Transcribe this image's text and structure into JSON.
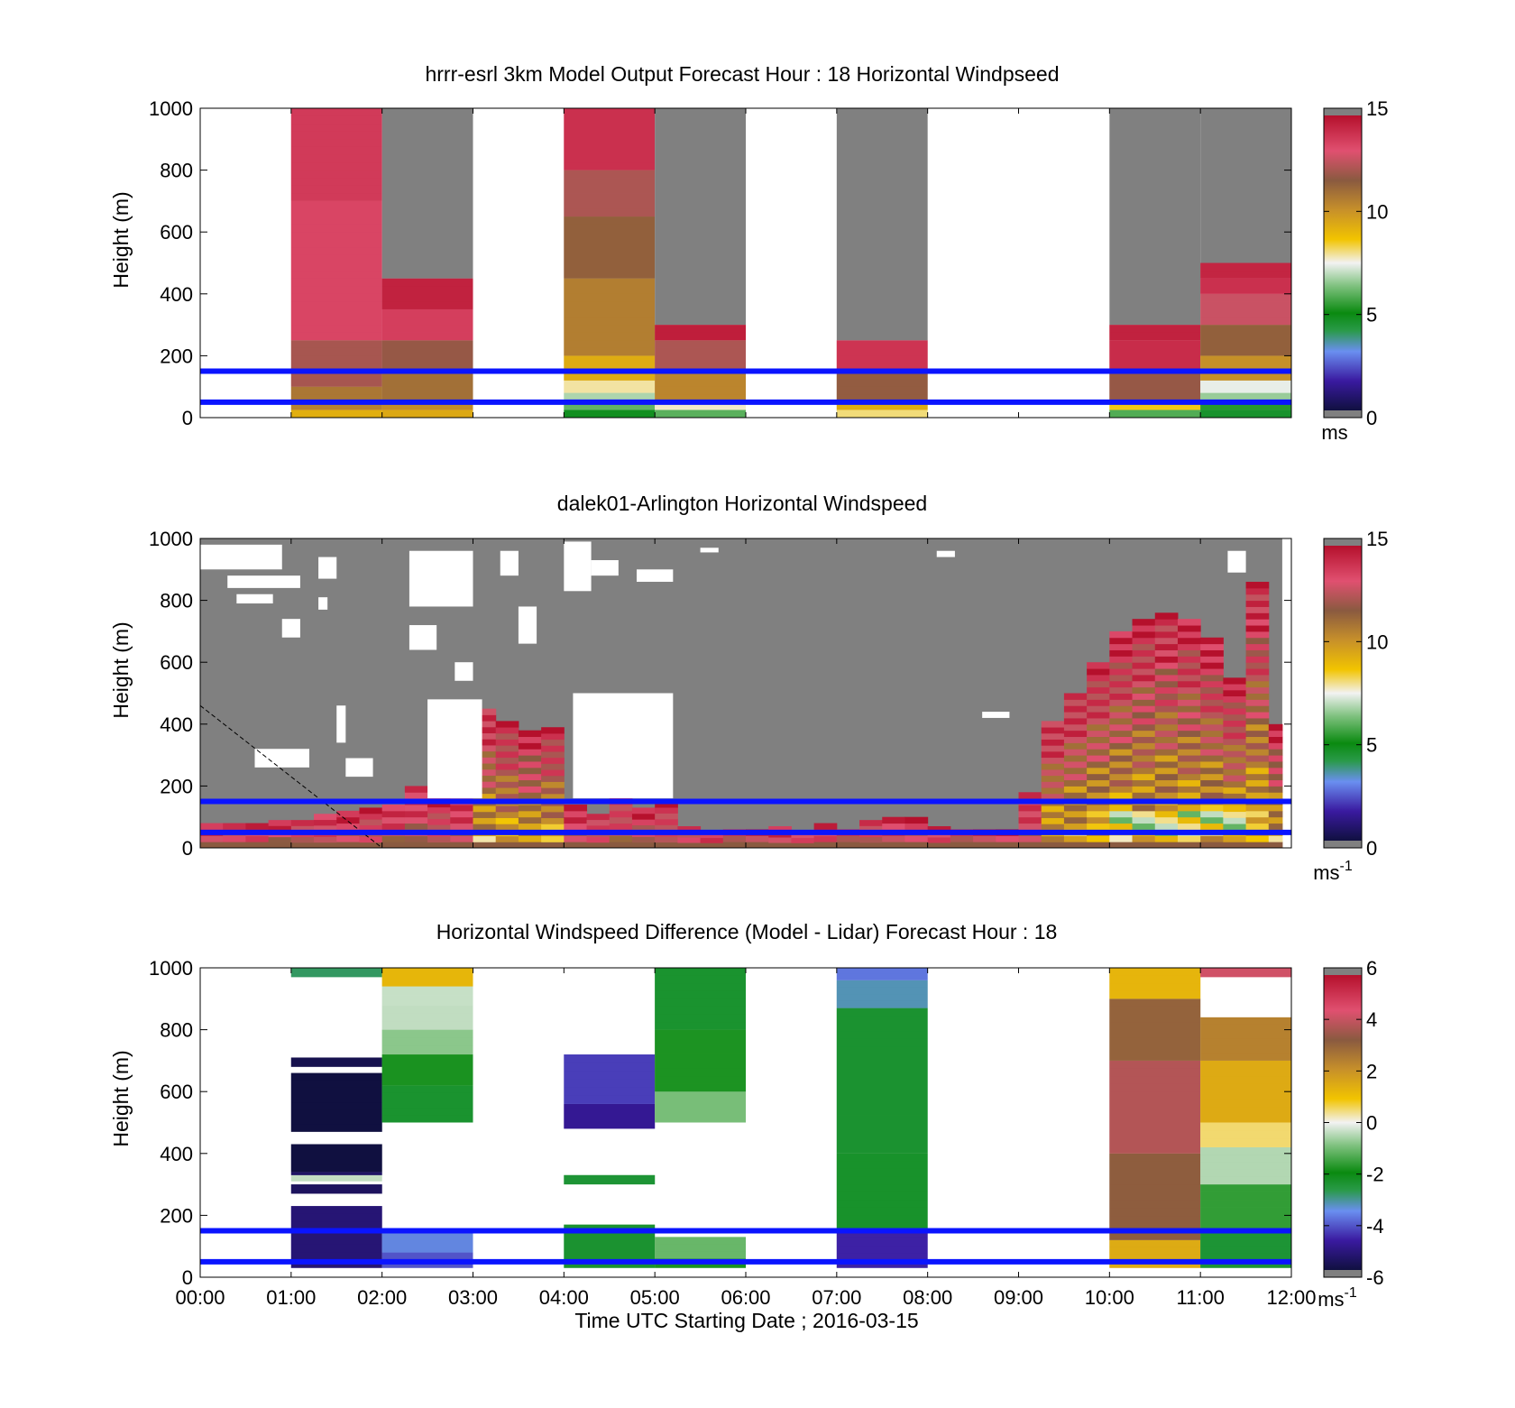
{
  "figure": {
    "xlabel": "Time UTC  Starting Date ; 2016-03-15"
  },
  "panels": [
    {
      "id": "model",
      "title": "hrrr-esrl 3km Model Output   Forecast Hour : 18 Horizontal Windpseed",
      "ylabel": "Height (m)",
      "ylim": [
        0,
        1000
      ],
      "yticks": [
        "0",
        "200",
        "400",
        "600",
        "800",
        "1000"
      ],
      "colorbar": {
        "ticks": [
          "0",
          "5",
          "10",
          "15"
        ],
        "unit": "ms",
        "unit_sup": "",
        "range": [
          0,
          15
        ],
        "cmap": "speed"
      },
      "ref_lines_m": [
        50,
        150
      ],
      "columns": [
        {
          "t0": 1,
          "t1": 2,
          "fill": [
            [
              0,
              25,
              9.5
            ],
            [
              25,
              50,
              10.5
            ],
            [
              50,
              100,
              11
            ],
            [
              100,
              250,
              12
            ],
            [
              250,
              700,
              13.5
            ],
            [
              700,
              1000,
              14
            ]
          ]
        },
        {
          "t0": 2,
          "t1": 3,
          "fill": [
            [
              0,
              25,
              9.5
            ],
            [
              25,
              50,
              10.5
            ],
            [
              50,
              150,
              11
            ],
            [
              150,
              250,
              12
            ],
            [
              250,
              350,
              13.5
            ],
            [
              350,
              450,
              14.5
            ],
            [
              450,
              1000,
              "nan"
            ]
          ]
        },
        {
          "t0": 4,
          "t1": 5,
          "fill": [
            [
              0,
              25,
              4.5
            ],
            [
              25,
              50,
              6
            ],
            [
              50,
              80,
              7
            ],
            [
              80,
              120,
              7.8
            ],
            [
              120,
              200,
              9.5
            ],
            [
              200,
              450,
              10.5
            ],
            [
              450,
              650,
              11.5
            ],
            [
              650,
              800,
              12.5
            ],
            [
              800,
              1000,
              14
            ]
          ]
        },
        {
          "t0": 5,
          "t1": 6,
          "fill": [
            [
              0,
              25,
              6
            ],
            [
              25,
              50,
              7.5
            ],
            [
              50,
              150,
              10.5
            ],
            [
              150,
              250,
              12.5
            ],
            [
              250,
              300,
              14.5
            ],
            [
              300,
              1000,
              "nan"
            ]
          ]
        },
        {
          "t0": 7,
          "t1": 8,
          "fill": [
            [
              0,
              25,
              8
            ],
            [
              25,
              50,
              9.5
            ],
            [
              50,
              150,
              11.5
            ],
            [
              150,
              250,
              14
            ],
            [
              250,
              1000,
              "nan"
            ]
          ]
        },
        {
          "t0": 10,
          "t1": 11,
          "fill": [
            [
              0,
              25,
              6
            ],
            [
              25,
              50,
              8.5
            ],
            [
              50,
              150,
              12
            ],
            [
              150,
              250,
              14
            ],
            [
              250,
              300,
              14.5
            ],
            [
              300,
              1000,
              "nan"
            ]
          ]
        },
        {
          "t0": 11,
          "t1": 12,
          "fill": [
            [
              0,
              25,
              4.5
            ],
            [
              25,
              50,
              5.5
            ],
            [
              50,
              80,
              6.5
            ],
            [
              80,
              120,
              7.5
            ],
            [
              120,
              200,
              10
            ],
            [
              200,
              300,
              11.5
            ],
            [
              300,
              400,
              13
            ],
            [
              400,
              450,
              14
            ],
            [
              450,
              500,
              14.5
            ],
            [
              500,
              1000,
              "nan"
            ]
          ]
        }
      ]
    },
    {
      "id": "lidar",
      "title": "dalek01-Arlington  Horizontal Windspeed",
      "ylabel": "Height (m)",
      "ylim": [
        0,
        1000
      ],
      "yticks": [
        "0",
        "200",
        "400",
        "600",
        "800",
        "1000"
      ],
      "colorbar": {
        "ticks": [
          "0",
          "5",
          "10",
          "15"
        ],
        "unit": "ms",
        "unit_sup": "-1",
        "range": [
          0,
          15
        ],
        "cmap": "speed"
      },
      "ref_lines_m": [
        50,
        150
      ],
      "time_range": [
        0,
        11.9
      ],
      "data_top_m": [
        [
          0.0,
          80
        ],
        [
          0.25,
          80
        ],
        [
          0.5,
          80
        ],
        [
          0.75,
          90
        ],
        [
          1.0,
          90
        ],
        [
          1.25,
          110
        ],
        [
          1.5,
          120
        ],
        [
          1.75,
          130
        ],
        [
          2.0,
          140
        ],
        [
          2.25,
          200
        ],
        [
          2.5,
          170
        ],
        [
          2.75,
          160
        ],
        [
          3.0,
          450
        ],
        [
          3.25,
          410
        ],
        [
          3.5,
          380
        ],
        [
          3.75,
          390
        ],
        [
          4.0,
          140
        ],
        [
          4.25,
          110
        ],
        [
          4.5,
          200
        ],
        [
          4.75,
          130
        ],
        [
          5.0,
          150
        ],
        [
          5.25,
          70
        ],
        [
          5.5,
          50
        ],
        [
          5.75,
          60
        ],
        [
          6.0,
          60
        ],
        [
          6.25,
          70
        ],
        [
          6.5,
          50
        ],
        [
          6.75,
          80
        ],
        [
          7.0,
          60
        ],
        [
          7.25,
          90
        ],
        [
          7.5,
          100
        ],
        [
          7.75,
          100
        ],
        [
          8.0,
          70
        ],
        [
          8.25,
          60
        ],
        [
          8.5,
          60
        ],
        [
          8.75,
          60
        ],
        [
          9.0,
          180
        ],
        [
          9.25,
          410
        ],
        [
          9.5,
          500
        ],
        [
          9.75,
          600
        ],
        [
          10.0,
          700
        ],
        [
          10.25,
          740
        ],
        [
          10.5,
          760
        ],
        [
          10.75,
          740
        ],
        [
          11.0,
          680
        ],
        [
          11.25,
          550
        ],
        [
          11.5,
          860
        ],
        [
          11.75,
          400
        ]
      ],
      "white_gaps": [
        [
          0.0,
          0.9,
          900,
          980
        ],
        [
          0.3,
          1.1,
          840,
          880
        ],
        [
          0.4,
          0.8,
          790,
          820
        ],
        [
          0.9,
          1.1,
          680,
          740
        ],
        [
          1.3,
          1.5,
          870,
          940
        ],
        [
          1.3,
          1.4,
          770,
          810
        ],
        [
          1.5,
          1.6,
          340,
          460
        ],
        [
          2.3,
          3.0,
          780,
          960
        ],
        [
          2.3,
          2.6,
          640,
          720
        ],
        [
          2.8,
          3.0,
          540,
          600
        ],
        [
          2.5,
          3.1,
          160,
          480
        ],
        [
          3.3,
          3.5,
          880,
          960
        ],
        [
          3.5,
          3.7,
          660,
          780
        ],
        [
          4.0,
          4.3,
          830,
          990
        ],
        [
          4.1,
          5.2,
          160,
          500
        ],
        [
          4.3,
          4.6,
          880,
          930
        ],
        [
          4.8,
          5.2,
          860,
          900
        ],
        [
          0.6,
          1.2,
          260,
          320
        ],
        [
          1.6,
          1.9,
          230,
          290
        ],
        [
          5.5,
          5.7,
          955,
          970
        ],
        [
          8.1,
          8.3,
          940,
          960
        ],
        [
          8.6,
          8.9,
          420,
          440
        ],
        [
          11.3,
          11.5,
          890,
          960
        ]
      ],
      "dashed_line": [
        [
          0.0,
          460
        ],
        [
          2.0,
          0
        ]
      ]
    },
    {
      "id": "diff",
      "title": "Horizontal Windspeed Difference (Model - Lidar) Forecast Hour : 18",
      "ylabel": "Height (m)",
      "ylim": [
        0,
        1000
      ],
      "yticks": [
        "0",
        "200",
        "400",
        "600",
        "800",
        "1000"
      ],
      "xticks": [
        "00:00",
        "01:00",
        "02:00",
        "03:00",
        "04:00",
        "05:00",
        "06:00",
        "07:00",
        "08:00",
        "09:00",
        "10:00",
        "11:00",
        "12:00"
      ],
      "colorbar": {
        "ticks": [
          "-6",
          "-4",
          "-2",
          "0",
          "2",
          "4",
          "6"
        ],
        "unit": "ms",
        "unit_sup": "-1",
        "range": [
          -6,
          6
        ],
        "cmap": "diff"
      },
      "ref_lines_m": [
        50,
        150
      ],
      "columns": [
        {
          "t0": 1,
          "t1": 2,
          "fill": [
            [
              30,
              230,
              -5.2
            ],
            [
              270,
              300,
              -5.7
            ],
            [
              310,
              330,
              -0.3
            ],
            [
              330,
              340,
              -5.7
            ],
            [
              340,
              430,
              -6.5
            ],
            [
              470,
              660,
              -6.5
            ],
            [
              680,
              710,
              -5.9
            ],
            [
              970,
              1000,
              -2.8
            ]
          ]
        },
        {
          "t0": 2,
          "t1": 3,
          "fill": [
            [
              30,
              80,
              -4.2
            ],
            [
              80,
              150,
              -3.5
            ],
            [
              500,
              620,
              -2.5
            ],
            [
              620,
              720,
              -1.8
            ],
            [
              720,
              800,
              -1.0
            ],
            [
              800,
              880,
              -0.4
            ],
            [
              880,
              940,
              -0.2
            ],
            [
              940,
              1000,
              1.2
            ]
          ]
        },
        {
          "t0": 4,
          "t1": 5,
          "fill": [
            [
              30,
              170,
              -2.6
            ],
            [
              300,
              330,
              -2.5
            ],
            [
              480,
              560,
              -4.8
            ],
            [
              560,
              720,
              -4.5
            ]
          ]
        },
        {
          "t0": 5,
          "t1": 6,
          "fill": [
            [
              30,
              60,
              -1.8
            ],
            [
              60,
              130,
              -1.3
            ],
            [
              500,
              600,
              -1.0
            ],
            [
              600,
              800,
              -1.7
            ],
            [
              800,
              1000,
              -2.5
            ]
          ]
        },
        {
          "t0": 7,
          "t1": 8,
          "fill": [
            [
              30,
              150,
              -4.8
            ],
            [
              150,
              400,
              -2.3
            ],
            [
              400,
              870,
              -2.6
            ],
            [
              870,
              960,
              -3.3
            ],
            [
              960,
              1000,
              -3.7
            ]
          ]
        },
        {
          "t0": 10,
          "t1": 11,
          "fill": [
            [
              30,
              120,
              1.7
            ],
            [
              120,
              400,
              3.2
            ],
            [
              400,
              700,
              4.0
            ],
            [
              700,
              900,
              3.0
            ],
            [
              900,
              1000,
              1.3
            ]
          ]
        },
        {
          "t0": 11,
          "t1": 12,
          "fill": [
            [
              30,
              150,
              -2.5
            ],
            [
              150,
              300,
              -1.5
            ],
            [
              300,
              420,
              -0.6
            ],
            [
              420,
              500,
              0.6
            ],
            [
              500,
              700,
              1.4
            ],
            [
              700,
              840,
              2.5
            ],
            [
              970,
              1000,
              4.5
            ]
          ]
        }
      ]
    }
  ]
}
